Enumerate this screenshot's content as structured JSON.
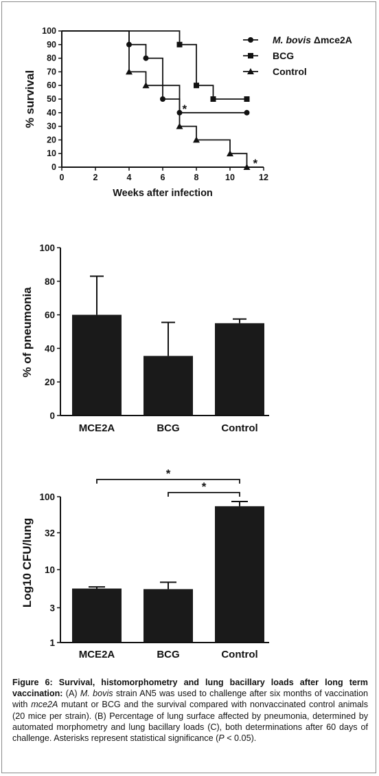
{
  "chart_data": [
    {
      "panel": "A",
      "type": "line",
      "xlabel": "Weeks after infection",
      "ylabel": "% survival",
      "xlim": [
        0,
        12
      ],
      "ylim": [
        0,
        100
      ],
      "xticks": [
        "0",
        "2",
        "4",
        "6",
        "8",
        "10",
        "12"
      ],
      "yticks": [
        "0",
        "10",
        "20",
        "30",
        "40",
        "50",
        "60",
        "70",
        "80",
        "90",
        "100"
      ],
      "legend_position": "top-right",
      "series": [
        {
          "name": "M. bovis Δmce2A",
          "name_italic": "M. bovis",
          "name_rest": "Δmce2A",
          "marker": "circle",
          "steps": [
            [
              0,
              100
            ],
            [
              4,
              90
            ],
            [
              5,
              80
            ],
            [
              6,
              50
            ],
            [
              7,
              40
            ],
            [
              11,
              40
            ]
          ]
        },
        {
          "name": "BCG",
          "marker": "square",
          "steps": [
            [
              0,
              100
            ],
            [
              7,
              90
            ],
            [
              8,
              60
            ],
            [
              9,
              50
            ],
            [
              11,
              50
            ]
          ]
        },
        {
          "name": "Control",
          "marker": "triangle",
          "steps": [
            [
              0,
              100
            ],
            [
              4,
              70
            ],
            [
              5,
              60
            ],
            [
              7,
              30
            ],
            [
              8,
              20
            ],
            [
              10,
              10
            ],
            [
              11,
              0
            ]
          ]
        }
      ],
      "annotations": [
        {
          "text": "*",
          "x": 7.3,
          "y": 44
        },
        {
          "text": "*",
          "x": 11.5,
          "y": 4
        }
      ]
    },
    {
      "panel": "B",
      "type": "bar",
      "ylabel": "% of  pneumonia",
      "ylim": [
        0,
        100
      ],
      "yticks": [
        "0",
        "20",
        "40",
        "60",
        "80",
        "100"
      ],
      "categories": [
        "MCE2A",
        "BCG",
        "Control"
      ],
      "values": [
        60,
        35.5,
        55
      ],
      "error_upper": [
        83,
        55.5,
        57.5
      ]
    },
    {
      "panel": "C",
      "type": "bar",
      "ylabel": "Log10 CFU/lung",
      "yscale": "log",
      "ylim": [
        1,
        100
      ],
      "yticks": [
        "1",
        "3",
        "10",
        "32",
        "100"
      ],
      "categories": [
        "MCE2A",
        "BCG",
        "Control"
      ],
      "values": [
        5.5,
        5.4,
        74
      ],
      "error_upper": [
        5.8,
        6.7,
        86
      ],
      "significance": [
        {
          "from": "MCE2A",
          "to": "Control",
          "label": "*"
        },
        {
          "from": "BCG",
          "to": "Control",
          "label": "*"
        }
      ]
    }
  ],
  "caption": {
    "figure_label": "Figure 6: Survival, histomorphometry and lung bacillary loads after long term vaccination:",
    "part1": " (A) ",
    "ital1": "M. bovis",
    "part2": " strain AN5 was used to challenge after six months of vaccination with ",
    "ital2": "mce2A",
    "part3": " mutant or BCG and the survival compared with nonvaccinated control animals (20 mice per strain). (B) Percentage of lung surface affected by pneumonia, determined by automated morphometry and lung bacillary loads (C), both determinations after 60 days of challenge. Asterisks represent statistical significance (",
    "ital3": "P",
    "part4": " < 0.05)."
  }
}
